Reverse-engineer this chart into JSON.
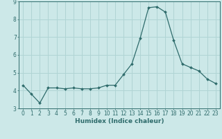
{
  "x": [
    0,
    1,
    2,
    3,
    4,
    5,
    6,
    7,
    8,
    9,
    10,
    11,
    12,
    13,
    14,
    15,
    16,
    17,
    18,
    19,
    20,
    21,
    22,
    23
  ],
  "y": [
    4.3,
    3.8,
    3.3,
    4.15,
    4.15,
    4.1,
    4.15,
    4.1,
    4.1,
    4.15,
    4.3,
    4.3,
    4.9,
    5.5,
    6.95,
    8.65,
    8.7,
    8.4,
    6.8,
    5.5,
    5.3,
    5.1,
    4.65,
    4.4
  ],
  "line_color": "#2e6b6b",
  "marker": "D",
  "marker_size": 2.0,
  "bg_color": "#cce8e8",
  "grid_color": "#b0d4d4",
  "xlabel": "Humidex (Indice chaleur)",
  "xlabel_fontsize": 6.5,
  "xlim": [
    -0.5,
    23.5
  ],
  "ylim": [
    3.0,
    9.0
  ],
  "yticks": [
    3,
    4,
    5,
    6,
    7,
    8,
    9
  ],
  "xticks": [
    0,
    1,
    2,
    3,
    4,
    5,
    6,
    7,
    8,
    9,
    10,
    11,
    12,
    13,
    14,
    15,
    16,
    17,
    18,
    19,
    20,
    21,
    22,
    23
  ],
  "tick_fontsize": 5.5,
  "text_color": "#2e6b6b",
  "spine_color": "#2e6b6b"
}
